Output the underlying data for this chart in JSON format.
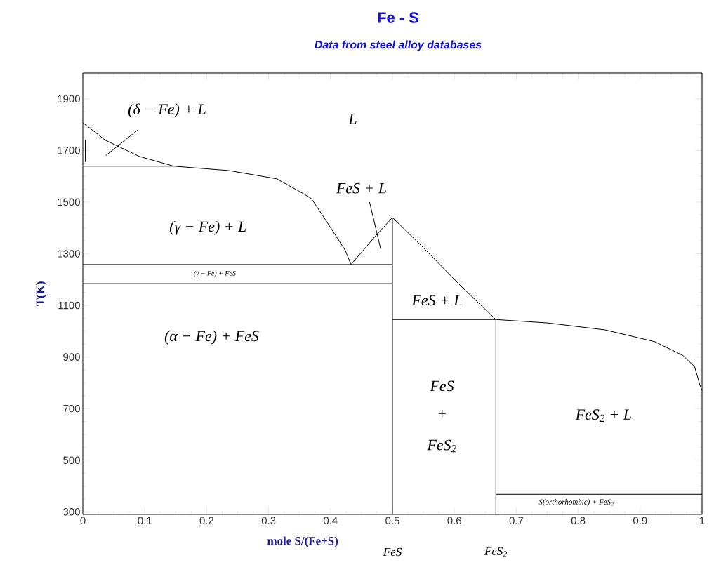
{
  "chart_data": {
    "type": "line",
    "title": "Fe - S",
    "subtitle": "Data from steel alloy databases",
    "xlabel": "mole S/(Fe+S)",
    "ylabel": "T(K)",
    "xlim": [
      0,
      1
    ],
    "ylim": [
      290,
      2000
    ],
    "xticks": [
      0,
      0.1,
      0.2,
      0.3,
      0.4,
      0.5,
      0.6,
      0.7,
      0.8,
      0.9,
      1
    ],
    "yticks": [
      300,
      500,
      700,
      900,
      1100,
      1300,
      1500,
      1700,
      1900
    ],
    "series": [
      {
        "color": "#000000",
        "x": [
          0,
          0.036,
          0.091,
          0.147,
          0.236,
          0.294,
          0.313,
          0.35,
          0.369,
          0.402,
          0.424,
          0.433
        ],
        "values": [
          1808,
          1740,
          1677,
          1639,
          1622,
          1598,
          1590,
          1541,
          1514,
          1394,
          1312,
          1258
        ]
      },
      {
        "color": "#000000",
        "x": [
          0.433,
          0.472,
          0.5,
          0.55,
          0.61,
          0.667
        ],
        "values": [
          1258,
          1367,
          1440,
          1323,
          1176,
          1045
        ]
      },
      {
        "color": "#000000",
        "x": [
          0.5,
          0.667,
          0.75,
          0.843,
          0.924,
          0.969,
          0.988,
          0.997,
          1.0
        ],
        "values": [
          1045,
          1045,
          1032,
          1005,
          959,
          906,
          862,
          787,
          770
        ]
      },
      {
        "color": "#000000",
        "x": [
          0,
          0.147
        ],
        "values": [
          1639,
          1639
        ]
      },
      {
        "color": "#000000",
        "x": [
          0,
          0.5
        ],
        "values": [
          1258,
          1258
        ]
      },
      {
        "color": "#000000",
        "x": [
          0,
          0.5
        ],
        "values": [
          1184,
          1184
        ]
      },
      {
        "color": "#000000",
        "x": [
          0.5,
          0.5
        ],
        "values": [
          290,
          1440
        ]
      },
      {
        "color": "#000000",
        "x": [
          0.667,
          0.667
        ],
        "values": [
          290,
          1045
        ]
      },
      {
        "color": "#000000",
        "x": [
          0.667,
          1.0
        ],
        "values": [
          368,
          368
        ]
      },
      {
        "color": "#000000",
        "x": [
          0.037,
          0.089
        ],
        "values": [
          1680,
          1780
        ]
      },
      {
        "color": "#000000",
        "x": [
          0.463,
          0.481
        ],
        "values": [
          1500,
          1318
        ]
      },
      {
        "color": "#000000",
        "x": [
          0.004,
          0.004
        ],
        "values": [
          1655,
          1740
        ]
      }
    ],
    "annotations": [
      "(δ − Fe) + L",
      "L",
      "FeS + L",
      "(γ − Fe) + L",
      "(γ − Fe) + FeS",
      "FeS + L",
      "(α − Fe) + FeS",
      "FeS",
      "+",
      "FeS$_{2}$",
      "FeS$_{2}$ + L",
      "S(orthorhombic) + FeS$_{2}$",
      "FeS",
      "FeS$_{2}$"
    ]
  }
}
